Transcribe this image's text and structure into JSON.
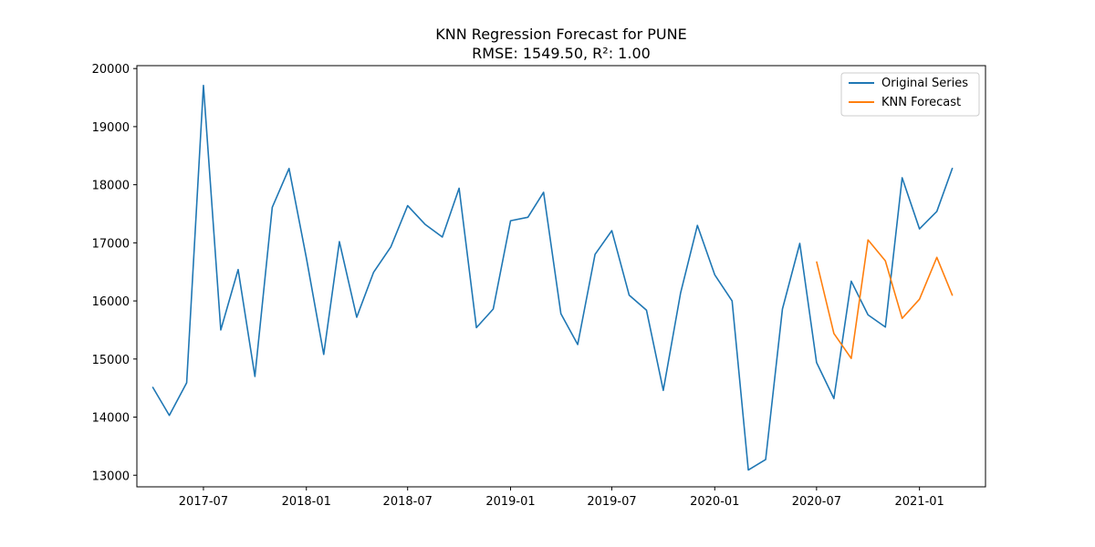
{
  "chart_data": {
    "type": "line",
    "title": "KNN Regression Forecast for PUNE",
    "subtitle": "RMSE: 1549.50, R²: 1.00",
    "xlabel": "",
    "ylabel": "",
    "ylim": [
      12800,
      20050
    ],
    "xlim": [
      "2017-03-04",
      "2021-04-29"
    ],
    "x_ticks": [
      "2017-07",
      "2018-01",
      "2018-07",
      "2019-01",
      "2019-07",
      "2020-01",
      "2020-07",
      "2021-01"
    ],
    "y_ticks": [
      13000,
      14000,
      15000,
      16000,
      17000,
      18000,
      19000,
      20000
    ],
    "grid": false,
    "legend_position": "top-right",
    "series": [
      {
        "name": "Original Series",
        "color": "#1f77b4",
        "x": [
          "2017-04",
          "2017-05",
          "2017-06",
          "2017-07",
          "2017-08",
          "2017-09",
          "2017-10",
          "2017-11",
          "2017-12",
          "2018-01",
          "2018-02",
          "2018-03",
          "2018-04",
          "2018-05",
          "2018-06",
          "2018-07",
          "2018-08",
          "2018-09",
          "2018-10",
          "2018-11",
          "2018-12",
          "2019-01",
          "2019-02",
          "2019-03",
          "2019-04",
          "2019-05",
          "2019-06",
          "2019-07",
          "2019-08",
          "2019-09",
          "2019-10",
          "2019-11",
          "2019-12",
          "2020-01",
          "2020-02",
          "2020-03",
          "2020-04",
          "2020-05",
          "2020-06",
          "2020-07",
          "2020-08",
          "2020-09",
          "2020-10",
          "2020-11",
          "2020-12",
          "2021-01",
          "2021-02",
          "2021-03"
        ],
        "values": [
          14520,
          14030,
          14590,
          19710,
          15500,
          16540,
          14700,
          17610,
          18280,
          16740,
          15080,
          17020,
          15720,
          16490,
          16930,
          17640,
          17320,
          17100,
          17940,
          15540,
          15860,
          17380,
          17440,
          17870,
          15780,
          15250,
          16800,
          17210,
          16100,
          15840,
          14460,
          16140,
          17300,
          16450,
          16000,
          13090,
          13270,
          15860,
          16990,
          14940,
          14320,
          16340,
          15760,
          15550,
          18120,
          17240,
          17540,
          18290
        ]
      },
      {
        "name": "KNN Forecast",
        "color": "#ff7f0e",
        "x": [
          "2020-07",
          "2020-08",
          "2020-09",
          "2020-10",
          "2020-11",
          "2020-12",
          "2021-01",
          "2021-02",
          "2021-03"
        ],
        "values": [
          16680,
          15440,
          15010,
          17050,
          16690,
          15700,
          16030,
          16750,
          16090
        ]
      }
    ]
  }
}
